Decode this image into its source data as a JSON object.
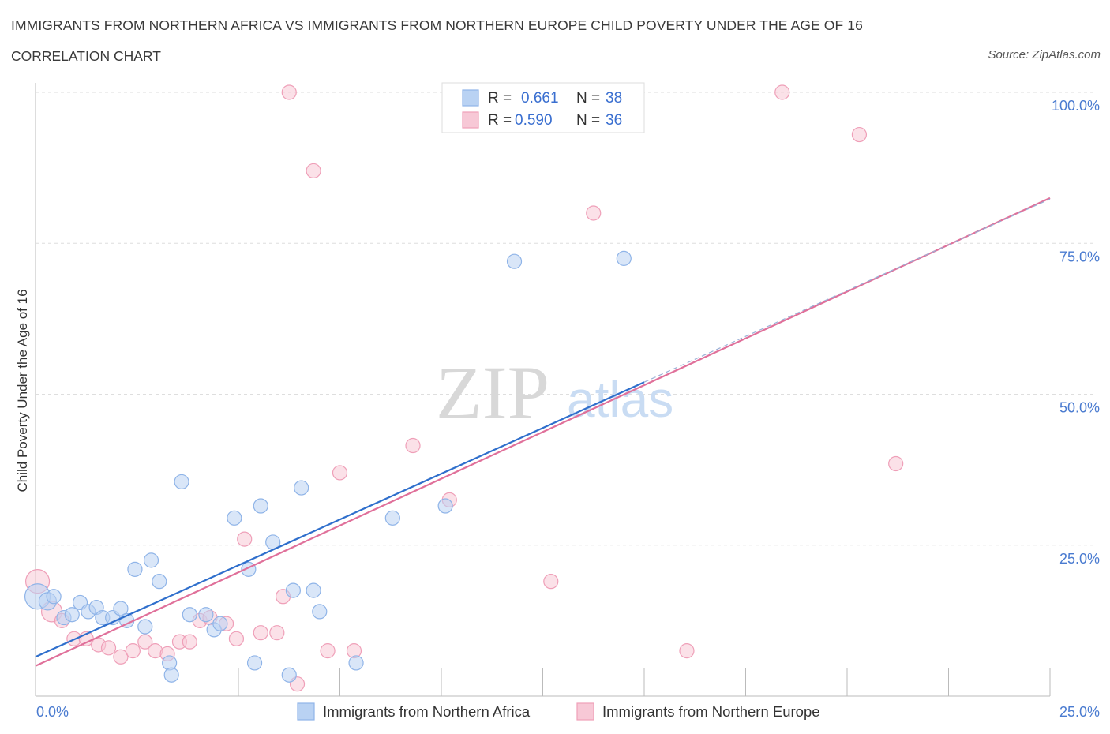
{
  "chart_data": {
    "type": "scatter",
    "title": "IMMIGRANTS FROM NORTHERN AFRICA VS IMMIGRANTS FROM NORTHERN EUROPE CHILD POVERTY UNDER THE AGE OF 16",
    "subtitle": "CORRELATION CHART",
    "source": "Source: ZipAtlas.com",
    "xlabel": "",
    "ylabel": "Child Poverty Under the Age of 16",
    "xlim": [
      0,
      25
    ],
    "ylim": [
      0,
      100
    ],
    "x_tick_labels": [
      "0.0%",
      "25.0%"
    ],
    "y_ticks": [
      {
        "value": 25,
        "label": "25.0%"
      },
      {
        "value": 50,
        "label": "50.0%"
      },
      {
        "value": 75,
        "label": "75.0%"
      },
      {
        "value": 100,
        "label": "100.0%"
      }
    ],
    "watermark": {
      "zip": "ZIP",
      "atlas": "atlas"
    },
    "legend": {
      "r_label": "R =",
      "n_label": "N =",
      "entries": [
        {
          "r": "0.661",
          "n": "38"
        },
        {
          "r": "0.590",
          "n": "36"
        }
      ]
    },
    "series": [
      {
        "name": "Immigrants from Northern Africa",
        "color": "#8fb4e8",
        "fill": "#b9d2f3",
        "line_color": "#2f6fcc",
        "trend": {
          "x0": 0,
          "y0": 6.5,
          "x1": 15,
          "y1": 52
        },
        "points": [
          {
            "x": 0.05,
            "y": 16.5,
            "s": 16
          },
          {
            "x": 0.3,
            "y": 15.7,
            "s": 11
          },
          {
            "x": 0.45,
            "y": 16.5,
            "s": 9
          },
          {
            "x": 0.7,
            "y": 13.0,
            "s": 9
          },
          {
            "x": 0.9,
            "y": 13.5,
            "s": 9
          },
          {
            "x": 1.1,
            "y": 15.5,
            "s": 9
          },
          {
            "x": 1.3,
            "y": 14.0,
            "s": 9
          },
          {
            "x": 1.5,
            "y": 14.7,
            "s": 9
          },
          {
            "x": 1.65,
            "y": 13.0,
            "s": 9
          },
          {
            "x": 1.9,
            "y": 13.0,
            "s": 9
          },
          {
            "x": 2.1,
            "y": 14.5,
            "s": 9
          },
          {
            "x": 2.25,
            "y": 12.5,
            "s": 9
          },
          {
            "x": 2.45,
            "y": 21.0,
            "s": 9
          },
          {
            "x": 2.7,
            "y": 11.5,
            "s": 9
          },
          {
            "x": 2.85,
            "y": 22.5,
            "s": 9
          },
          {
            "x": 3.05,
            "y": 19.0,
            "s": 9
          },
          {
            "x": 3.3,
            "y": 5.5,
            "s": 9
          },
          {
            "x": 3.35,
            "y": 3.5,
            "s": 9
          },
          {
            "x": 3.6,
            "y": 35.5,
            "s": 9
          },
          {
            "x": 3.8,
            "y": 13.5,
            "s": 9
          },
          {
            "x": 4.2,
            "y": 13.5,
            "s": 9
          },
          {
            "x": 4.4,
            "y": 11.0,
            "s": 9
          },
          {
            "x": 4.55,
            "y": 12.0,
            "s": 9
          },
          {
            "x": 4.9,
            "y": 29.5,
            "s": 9
          },
          {
            "x": 5.25,
            "y": 21.0,
            "s": 9
          },
          {
            "x": 5.4,
            "y": 5.5,
            "s": 9
          },
          {
            "x": 5.55,
            "y": 31.5,
            "s": 9
          },
          {
            "x": 5.85,
            "y": 25.5,
            "s": 9
          },
          {
            "x": 6.25,
            "y": 3.5,
            "s": 9
          },
          {
            "x": 6.35,
            "y": 17.5,
            "s": 9
          },
          {
            "x": 6.55,
            "y": 34.5,
            "s": 9
          },
          {
            "x": 6.85,
            "y": 17.5,
            "s": 9
          },
          {
            "x": 7.0,
            "y": 14.0,
            "s": 9
          },
          {
            "x": 7.9,
            "y": 5.5,
            "s": 9
          },
          {
            "x": 8.8,
            "y": 29.5,
            "s": 9
          },
          {
            "x": 10.1,
            "y": 31.5,
            "s": 9
          },
          {
            "x": 11.8,
            "y": 72.0,
            "s": 9
          },
          {
            "x": 14.5,
            "y": 72.5,
            "s": 9
          }
        ]
      },
      {
        "name": "Immigrants from Northern Europe",
        "color": "#ef9fb8",
        "fill": "#f7c8d6",
        "line_color": "#e0709a",
        "trend": {
          "x0": 0,
          "y0": 5.0,
          "x1": 25,
          "y1": 82.5
        },
        "points": [
          {
            "x": 0.05,
            "y": 19.0,
            "s": 15
          },
          {
            "x": 0.4,
            "y": 14.0,
            "s": 13
          },
          {
            "x": 0.65,
            "y": 12.5,
            "s": 9
          },
          {
            "x": 0.95,
            "y": 9.5,
            "s": 9
          },
          {
            "x": 1.25,
            "y": 9.5,
            "s": 9
          },
          {
            "x": 1.55,
            "y": 8.5,
            "s": 9
          },
          {
            "x": 1.8,
            "y": 8.0,
            "s": 9
          },
          {
            "x": 2.1,
            "y": 6.5,
            "s": 9
          },
          {
            "x": 2.4,
            "y": 7.5,
            "s": 9
          },
          {
            "x": 2.7,
            "y": 9.0,
            "s": 9
          },
          {
            "x": 2.95,
            "y": 7.5,
            "s": 9
          },
          {
            "x": 3.25,
            "y": 7.0,
            "s": 9
          },
          {
            "x": 3.55,
            "y": 9.0,
            "s": 9
          },
          {
            "x": 3.8,
            "y": 9.0,
            "s": 9
          },
          {
            "x": 4.05,
            "y": 12.5,
            "s": 9
          },
          {
            "x": 4.3,
            "y": 13.0,
            "s": 9
          },
          {
            "x": 4.7,
            "y": 12.0,
            "s": 9
          },
          {
            "x": 4.95,
            "y": 9.5,
            "s": 9
          },
          {
            "x": 5.15,
            "y": 26.0,
            "s": 9
          },
          {
            "x": 5.55,
            "y": 10.5,
            "s": 9
          },
          {
            "x": 5.95,
            "y": 10.5,
            "s": 9
          },
          {
            "x": 6.1,
            "y": 16.5,
            "s": 9
          },
          {
            "x": 6.25,
            "y": 100.0,
            "s": 9
          },
          {
            "x": 6.45,
            "y": 2.0,
            "s": 9
          },
          {
            "x": 6.85,
            "y": 87.0,
            "s": 9
          },
          {
            "x": 7.2,
            "y": 7.5,
            "s": 9
          },
          {
            "x": 7.5,
            "y": 37.0,
            "s": 9
          },
          {
            "x": 7.85,
            "y": 7.5,
            "s": 9
          },
          {
            "x": 9.3,
            "y": 41.5,
            "s": 9
          },
          {
            "x": 10.2,
            "y": 32.5,
            "s": 9
          },
          {
            "x": 12.7,
            "y": 19.0,
            "s": 9
          },
          {
            "x": 13.75,
            "y": 80.0,
            "s": 9
          },
          {
            "x": 16.05,
            "y": 7.5,
            "s": 9
          },
          {
            "x": 18.4,
            "y": 100.0,
            "s": 9
          },
          {
            "x": 20.3,
            "y": 93.0,
            "s": 9
          },
          {
            "x": 21.2,
            "y": 38.5,
            "s": 9
          }
        ]
      }
    ]
  }
}
